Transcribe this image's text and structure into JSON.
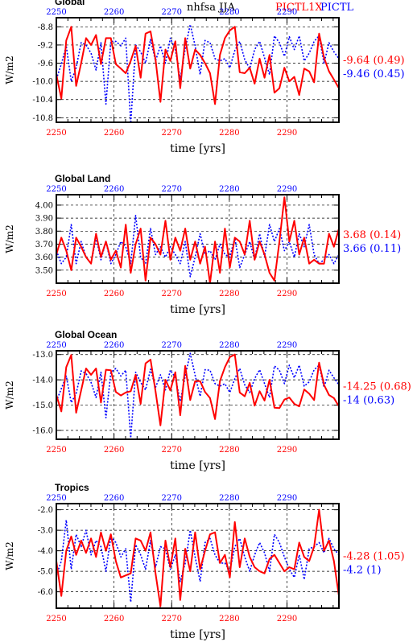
{
  "header": {
    "variable": "nhfsa JJA",
    "exp1": "PICTL1X",
    "exp2": "PICTL",
    "exp1_color": "#ff0000",
    "exp2_color": "#0000ff"
  },
  "chart_data": [
    {
      "type": "line",
      "title": "Global",
      "xlabel": "time [yrs]",
      "ylabel": "W/m2",
      "xlim": [
        2250,
        2299
      ],
      "ylim": [
        -10.9,
        -8.6
      ],
      "yticks": [
        -8.8,
        -9.2,
        -9.6,
        -10.0,
        -10.4,
        -10.8
      ],
      "ytick_labels": [
        "-8.8",
        "-9.2",
        "-9.6",
        "-10.0",
        "-10.4",
        "-10.8"
      ],
      "xticks": [
        2250,
        2260,
        2270,
        2280,
        2290
      ],
      "xtick_labels": [
        "2250",
        "2260",
        "2270",
        "2280",
        "2290"
      ],
      "grid": true,
      "series": [
        {
          "name": "PICTL1X",
          "color": "#ff0000",
          "style": "solid",
          "values": [
            -9.85,
            -10.38,
            -9.1,
            -8.8,
            -10.1,
            -9.6,
            -9.05,
            -9.2,
            -8.98,
            -9.62,
            -9.05,
            -9.05,
            -9.62,
            -9.72,
            -9.82,
            -9.55,
            -9.22,
            -9.92,
            -8.95,
            -8.9,
            -9.52,
            -10.45,
            -9.3,
            -9.55,
            -9.12,
            -10.15,
            -9.05,
            -9.72,
            -9.3,
            -9.42,
            -9.6,
            -9.82,
            -10.5,
            -9.42,
            -9.05,
            -8.88,
            -8.8,
            -9.8,
            -9.82,
            -9.7,
            -10.05,
            -9.5,
            -9.92,
            -9.42,
            -10.25,
            -10.15,
            -9.7,
            -10.0,
            -9.9,
            -10.3,
            -9.72,
            -9.78,
            -10.02,
            -8.95,
            -9.48,
            -9.78,
            -9.96,
            -10.15
          ],
          "final_mean": "9.64",
          "final_std": "(0.49)"
        },
        {
          "name": "PICTL",
          "color": "#0000ff",
          "style": "dotted",
          "values": [
            -9.95,
            -9.62,
            -9.22,
            -10.0,
            -9.7,
            -9.15,
            -9.2,
            -9.38,
            -9.75,
            -9.15,
            -10.5,
            -9.12,
            -9.12,
            -9.22,
            -9.05,
            -10.92,
            -9.2,
            -9.35,
            -9.6,
            -9.08,
            -9.55,
            -9.22,
            -9.6,
            -9.05,
            -9.3,
            -9.95,
            -9.28,
            -8.75,
            -9.22,
            -9.85,
            -9.1,
            -9.15,
            -9.5,
            -9.55,
            -9.5,
            -9.7,
            -9.32,
            -9.12,
            -9.52,
            -9.72,
            -9.3,
            -9.12,
            -9.48,
            -9.85,
            -9.0,
            -9.15,
            -9.45,
            -9.02,
            -9.3,
            -9.0,
            -9.55,
            -9.38,
            -9.12,
            -9.0,
            -9.6,
            -9.15,
            -9.35,
            -9.5
          ],
          "final_mean": "9.46",
          "final_std": "(0.45)"
        }
      ]
    },
    {
      "type": "line",
      "title": "Global Land",
      "xlabel": "time [yrs]",
      "ylabel": "W/m2",
      "xlim": [
        2250,
        2299
      ],
      "ylim": [
        3.4,
        4.08
      ],
      "yticks": [
        3.5,
        3.6,
        3.7,
        3.8,
        3.9,
        4.0
      ],
      "ytick_labels": [
        "3.50",
        "3.60",
        "3.70",
        "3.80",
        "3.90",
        "4.00"
      ],
      "xticks": [
        2250,
        2260,
        2270,
        2280,
        2290
      ],
      "xtick_labels": [
        "2250",
        "2260",
        "2270",
        "2280",
        "2290"
      ],
      "grid": true,
      "series": [
        {
          "name": "PICTL1X",
          "color": "#ff0000",
          "style": "solid",
          "values": [
            3.62,
            3.75,
            3.65,
            3.5,
            3.75,
            3.68,
            3.6,
            3.55,
            3.78,
            3.6,
            3.72,
            3.58,
            3.65,
            3.52,
            3.85,
            3.48,
            3.7,
            3.82,
            3.42,
            3.75,
            3.7,
            3.62,
            3.88,
            3.58,
            3.75,
            3.65,
            3.82,
            3.58,
            3.72,
            3.55,
            3.68,
            3.4,
            3.72,
            3.48,
            3.82,
            3.52,
            3.75,
            3.72,
            3.62,
            3.88,
            3.58,
            3.72,
            3.62,
            3.48,
            3.42,
            3.72,
            4.06,
            3.72,
            3.88,
            3.62,
            3.75,
            3.55,
            3.58,
            3.55,
            3.55,
            3.78,
            3.68,
            3.82
          ],
          "final_mean": "3.68",
          "final_std": "(0.14)"
        },
        {
          "name": "PICTL",
          "color": "#0000ff",
          "style": "dotted",
          "values": [
            3.65,
            3.55,
            3.6,
            3.85,
            3.55,
            3.72,
            3.6,
            3.55,
            3.75,
            3.58,
            3.72,
            3.55,
            3.62,
            3.72,
            3.68,
            3.55,
            3.92,
            3.6,
            3.55,
            3.82,
            3.62,
            3.68,
            3.6,
            3.68,
            3.62,
            3.55,
            3.72,
            3.45,
            3.6,
            3.78,
            3.62,
            3.65,
            3.58,
            3.7,
            3.62,
            3.6,
            3.75,
            3.52,
            3.62,
            3.72,
            3.58,
            3.78,
            3.6,
            3.85,
            3.72,
            3.82,
            3.65,
            3.72,
            3.6,
            3.78,
            3.68,
            3.85,
            3.62,
            3.55,
            3.58,
            3.62,
            3.55,
            3.62
          ],
          "final_mean": "3.66",
          "final_std": "(0.11)"
        }
      ]
    },
    {
      "type": "line",
      "title": "Global Ocean",
      "xlabel": "time [yrs]",
      "ylabel": "W/m2",
      "xlim": [
        2250,
        2299
      ],
      "ylim": [
        -16.35,
        -12.85
      ],
      "yticks": [
        -13.0,
        -14.0,
        -15.0,
        -16.0
      ],
      "ytick_labels": [
        "-13.0",
        "-14.0",
        "-15.0",
        "-16.0"
      ],
      "xticks": [
        2250,
        2260,
        2270,
        2280,
        2290
      ],
      "xtick_labels": [
        "2250",
        "2260",
        "2270",
        "2280",
        "2290"
      ],
      "grid": true,
      "series": [
        {
          "name": "PICTL1X",
          "color": "#ff0000",
          "style": "solid",
          "values": [
            -14.6,
            -15.25,
            -13.5,
            -13.02,
            -15.3,
            -14.42,
            -13.55,
            -13.8,
            -13.55,
            -14.9,
            -13.6,
            -13.62,
            -14.48,
            -14.62,
            -14.5,
            -14.45,
            -13.8,
            -14.95,
            -13.35,
            -13.2,
            -14.45,
            -15.8,
            -14.0,
            -14.42,
            -13.7,
            -15.4,
            -13.45,
            -14.8,
            -14.05,
            -14.05,
            -14.48,
            -14.72,
            -15.55,
            -14.05,
            -13.5,
            -13.1,
            -13.0,
            -14.5,
            -14.65,
            -14.12,
            -15.02,
            -14.45,
            -14.82,
            -14.0,
            -15.1,
            -15.12,
            -14.78,
            -14.7,
            -14.95,
            -15.05,
            -14.38,
            -14.55,
            -14.8,
            -13.32,
            -14.2,
            -14.6,
            -14.72,
            -15.05
          ],
          "final_mean": "14.25",
          "final_std": "(0.68)"
        },
        {
          "name": "PICTL",
          "color": "#0000ff",
          "style": "dotted",
          "values": [
            -14.85,
            -14.35,
            -13.85,
            -14.9,
            -14.55,
            -13.65,
            -13.75,
            -14.1,
            -14.7,
            -13.7,
            -15.5,
            -13.7,
            -13.55,
            -13.85,
            -13.62,
            -16.3,
            -13.7,
            -14.1,
            -14.4,
            -13.58,
            -14.3,
            -13.8,
            -14.4,
            -13.62,
            -13.9,
            -14.85,
            -13.85,
            -12.95,
            -13.82,
            -14.65,
            -13.6,
            -13.62,
            -14.15,
            -14.25,
            -14.15,
            -14.5,
            -13.95,
            -13.55,
            -14.2,
            -14.5,
            -13.95,
            -13.6,
            -14.15,
            -14.7,
            -13.45,
            -13.62,
            -14.15,
            -13.42,
            -13.92,
            -13.42,
            -14.25,
            -14.08,
            -13.6,
            -13.42,
            -14.3,
            -13.62,
            -13.92,
            -14.2
          ],
          "final_mean": "14",
          "final_std": "(0.63)"
        }
      ]
    },
    {
      "type": "line",
      "title": "Tropics",
      "xlabel": "time [yrs]",
      "ylabel": "W/m2",
      "xlim": [
        2250,
        2299
      ],
      "ylim": [
        -6.8,
        -1.7
      ],
      "yticks": [
        -2.0,
        -3.0,
        -4.0,
        -5.0,
        -6.0
      ],
      "ytick_labels": [
        "-2.0",
        "-3.0",
        "-4.0",
        "-5.0",
        "-6.0"
      ],
      "xticks": [
        2250,
        2260,
        2270,
        2280,
        2290
      ],
      "xtick_labels": [
        "2250",
        "2260",
        "2270",
        "2280",
        "2290"
      ],
      "grid": true,
      "series": [
        {
          "name": "PICTL1X",
          "color": "#ff0000",
          "style": "solid",
          "values": [
            -4.5,
            -6.2,
            -4.0,
            -3.3,
            -4.2,
            -3.5,
            -4.1,
            -3.4,
            -4.3,
            -3.1,
            -4.0,
            -3.2,
            -4.5,
            -5.3,
            -5.2,
            -5.1,
            -3.4,
            -3.5,
            -4.0,
            -3.1,
            -5.1,
            -6.7,
            -3.5,
            -4.8,
            -3.4,
            -6.4,
            -3.9,
            -5.0,
            -3.1,
            -4.9,
            -4.0,
            -3.2,
            -3.1,
            -4.6,
            -4.2,
            -5.3,
            -2.6,
            -4.8,
            -3.4,
            -4.3,
            -4.8,
            -5.0,
            -5.1,
            -4.4,
            -4.2,
            -4.6,
            -5.0,
            -4.8,
            -4.9,
            -3.6,
            -4.3,
            -4.5,
            -3.8,
            -2.0,
            -4.0,
            -3.5,
            -4.5,
            -6.2
          ],
          "final_mean": "4.28",
          "final_std": "(1.05)"
        },
        {
          "name": "PICTL",
          "color": "#0000ff",
          "style": "dotted",
          "values": [
            -5.2,
            -4.5,
            -2.5,
            -4.9,
            -3.2,
            -3.8,
            -3.0,
            -4.2,
            -3.5,
            -3.8,
            -5.0,
            -3.3,
            -3.6,
            -4.3,
            -3.9,
            -6.5,
            -3.7,
            -4.2,
            -4.9,
            -3.5,
            -4.8,
            -3.8,
            -3.9,
            -4.9,
            -4.2,
            -5.5,
            -4.6,
            -3.0,
            -4.3,
            -5.5,
            -3.6,
            -3.4,
            -4.2,
            -4.6,
            -4.6,
            -5.0,
            -3.8,
            -3.4,
            -4.3,
            -5.0,
            -4.2,
            -3.6,
            -4.1,
            -5.0,
            -3.2,
            -3.6,
            -4.3,
            -4.9,
            -5.3,
            -4.2,
            -5.4,
            -3.9,
            -3.8,
            -3.6,
            -4.1,
            -3.4,
            -3.9,
            -4.2
          ],
          "final_mean": "4.2",
          "final_std": "(1)"
        }
      ]
    }
  ]
}
